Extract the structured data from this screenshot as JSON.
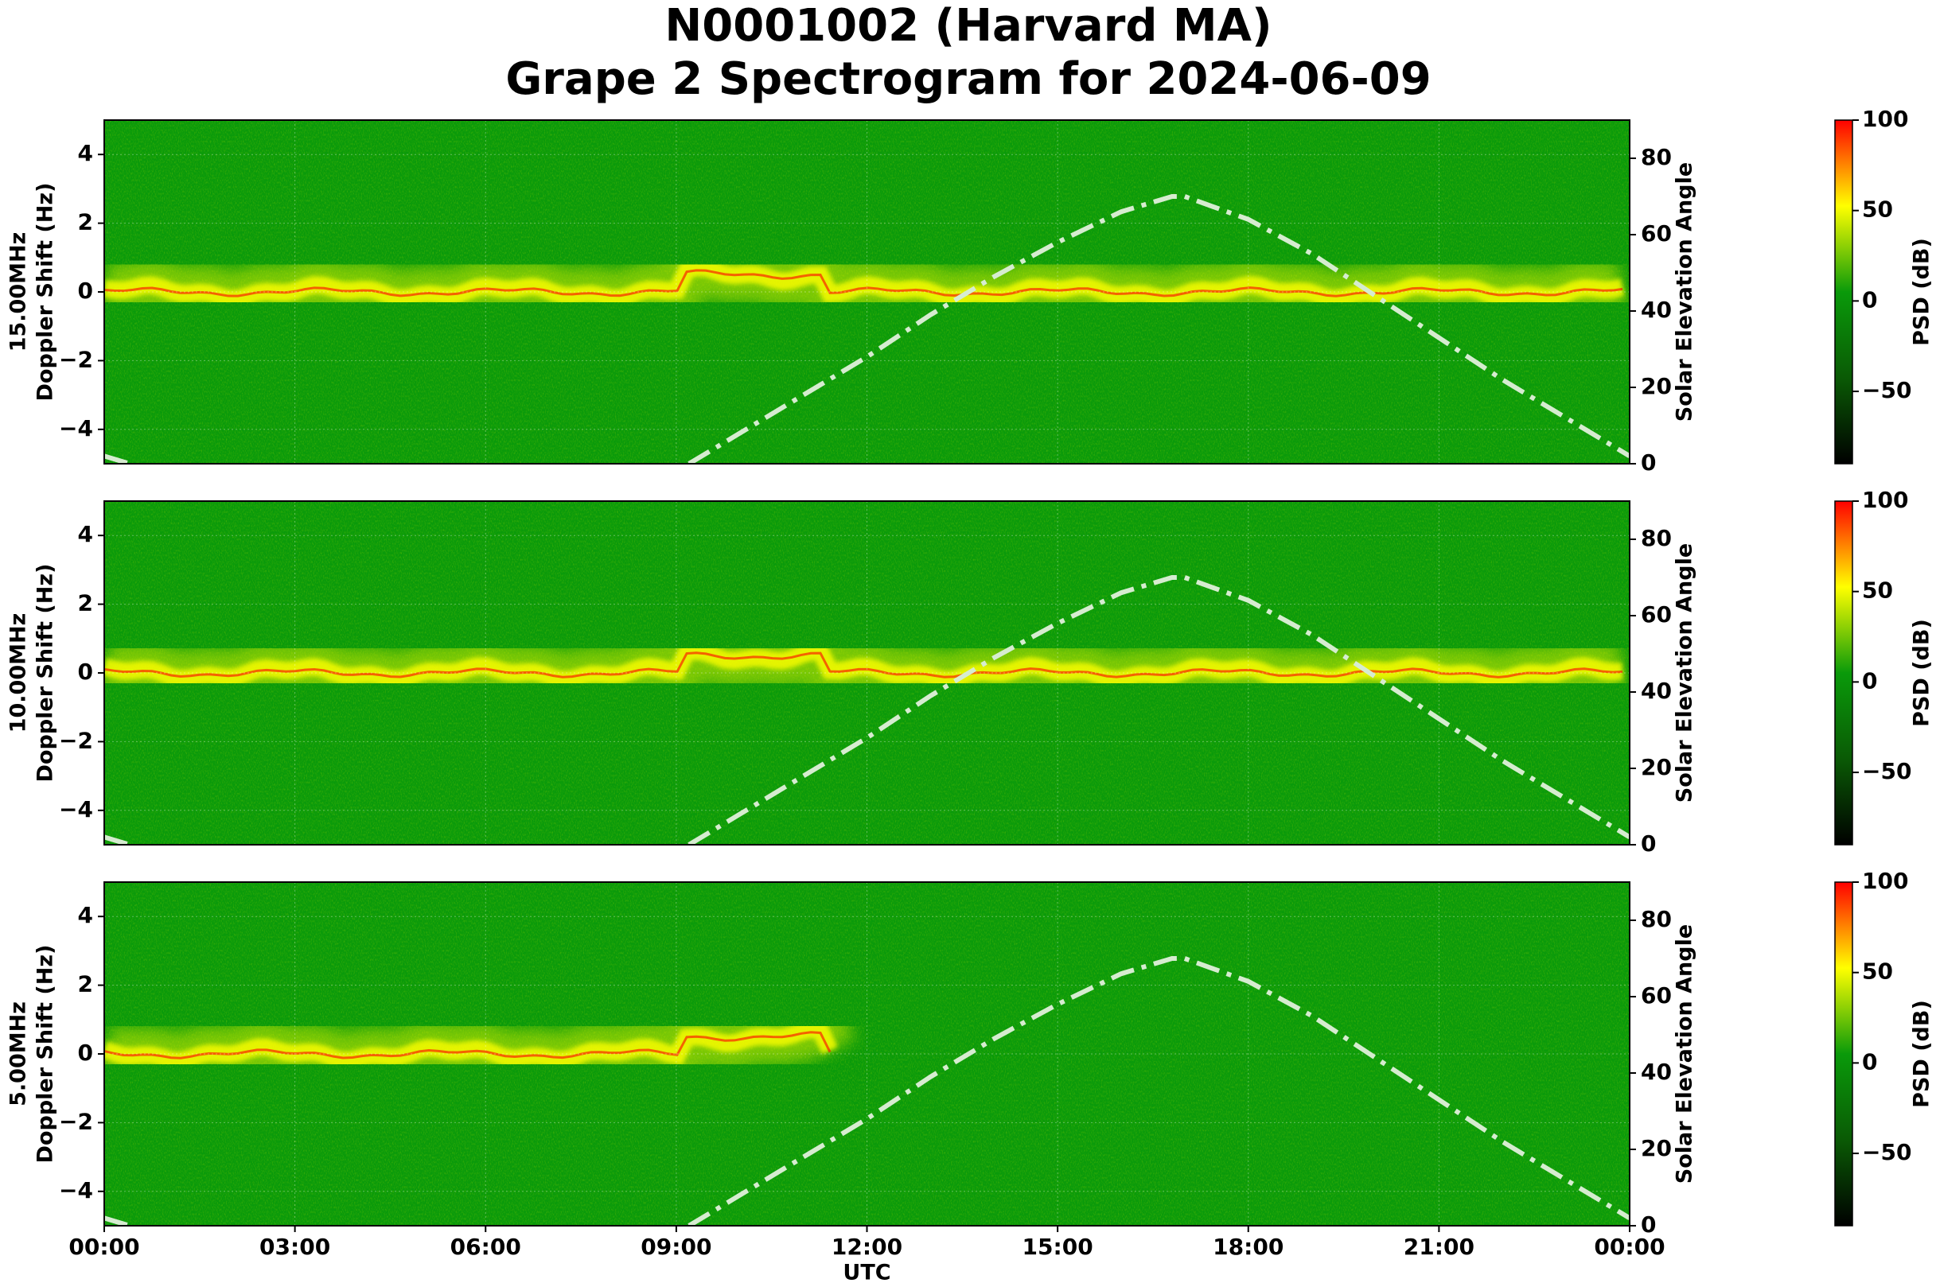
{
  "title": [
    "N0001002 (Harvard MA)",
    "Grape 2 Spectrogram for 2024-06-09"
  ],
  "chart_data": [
    {
      "type": "spectrogram",
      "ylabel": [
        "15.00MHz",
        "Doppler Shift (Hz)"
      ],
      "y2label": "Solar Elevation Angle",
      "xlim": [
        0,
        24
      ],
      "ylim": [
        -5,
        5
      ],
      "y2lim": [
        0,
        90
      ],
      "yticks": [
        {
          "value": -4,
          "label": "−4"
        },
        {
          "value": -2,
          "label": "−2"
        },
        0,
        2,
        4
      ],
      "y2ticks": [
        0,
        20,
        40,
        60,
        80
      ],
      "grid": true,
      "series": [
        {
          "name": "Solar Elevation Angle",
          "color": "#d6ecd0",
          "axis": "y2",
          "x": [
            0,
            0.4,
            5,
            9.2,
            10,
            11,
            12,
            13,
            14,
            15,
            16,
            16.8,
            17,
            18,
            19,
            20,
            21,
            22,
            23,
            24
          ],
          "values": [
            2,
            0,
            null,
            0,
            8,
            18,
            28,
            39,
            49,
            58,
            66,
            70,
            70,
            64,
            55,
            44,
            33,
            22,
            12,
            2
          ]
        }
      ],
      "colorbar": {
        "label": "PSD (dB)",
        "lim": [
          -90,
          100
        ],
        "colormap": [
          "#000000",
          "#0a5a05",
          "#0a9a0a",
          "#ffff00",
          "#ff0000"
        ],
        "ticks": [
          {
            "value": -50,
            "label": "−50"
          },
          0,
          50,
          100
        ]
      }
    },
    {
      "type": "spectrogram",
      "ylabel": [
        "10.00MHz",
        "Doppler Shift (Hz)"
      ],
      "y2label": "Solar Elevation Angle",
      "xlim": [
        0,
        24
      ],
      "ylim": [
        -5,
        5
      ],
      "y2lim": [
        0,
        90
      ],
      "yticks": [
        {
          "value": -4,
          "label": "−4"
        },
        {
          "value": -2,
          "label": "−2"
        },
        0,
        2,
        4
      ],
      "y2ticks": [
        0,
        20,
        40,
        60,
        80
      ],
      "grid": true,
      "series": [
        {
          "name": "Solar Elevation Angle",
          "color": "#d6ecd0",
          "axis": "y2",
          "x": [
            0,
            0.4,
            5,
            9.2,
            10,
            11,
            12,
            13,
            14,
            15,
            16,
            16.8,
            17,
            18,
            19,
            20,
            21,
            22,
            23,
            24
          ],
          "values": [
            2,
            0,
            null,
            0,
            8,
            18,
            28,
            39,
            49,
            58,
            66,
            70,
            70,
            64,
            55,
            44,
            33,
            22,
            12,
            2
          ]
        }
      ],
      "colorbar": {
        "label": "PSD (dB)",
        "lim": [
          -90,
          100
        ],
        "colormap": [
          "#000000",
          "#0a5a05",
          "#0a9a0a",
          "#ffff00",
          "#ff0000"
        ],
        "ticks": [
          {
            "value": -50,
            "label": "−50"
          },
          0,
          50,
          100
        ]
      }
    },
    {
      "type": "spectrogram",
      "ylabel": [
        "5.00MHz",
        "Doppler Shift (Hz)"
      ],
      "y2label": "Solar Elevation Angle",
      "xlabel": "UTC",
      "xlim": [
        0,
        24
      ],
      "xticks": [
        {
          "value": 0,
          "label": "00:00"
        },
        {
          "value": 3,
          "label": "03:00"
        },
        {
          "value": 6,
          "label": "06:00"
        },
        {
          "value": 9,
          "label": "09:00"
        },
        {
          "value": 12,
          "label": "12:00"
        },
        {
          "value": 15,
          "label": "15:00"
        },
        {
          "value": 18,
          "label": "18:00"
        },
        {
          "value": 21,
          "label": "21:00"
        },
        {
          "value": 24,
          "label": "00:00"
        }
      ],
      "ylim": [
        -5,
        5
      ],
      "y2lim": [
        0,
        90
      ],
      "yticks": [
        {
          "value": -4,
          "label": "−4"
        },
        {
          "value": -2,
          "label": "−2"
        },
        0,
        2,
        4
      ],
      "y2ticks": [
        0,
        20,
        40,
        60,
        80
      ],
      "grid": true,
      "series": [
        {
          "name": "Solar Elevation Angle",
          "color": "#d6ecd0",
          "axis": "y2",
          "x": [
            0,
            0.4,
            5,
            9.2,
            10,
            11,
            12,
            13,
            14,
            15,
            16,
            16.8,
            17,
            18,
            19,
            20,
            21,
            22,
            23,
            24
          ],
          "values": [
            2,
            0,
            null,
            0,
            8,
            18,
            28,
            39,
            49,
            58,
            66,
            70,
            70,
            64,
            55,
            44,
            33,
            22,
            12,
            2
          ]
        }
      ],
      "colorbar": {
        "label": "PSD (dB)",
        "lim": [
          -90,
          100
        ],
        "colormap": [
          "#000000",
          "#0a5a05",
          "#0a9a0a",
          "#ffff00",
          "#ff0000"
        ],
        "ticks": [
          {
            "value": -50,
            "label": "−50"
          },
          0,
          50,
          100
        ]
      }
    }
  ]
}
